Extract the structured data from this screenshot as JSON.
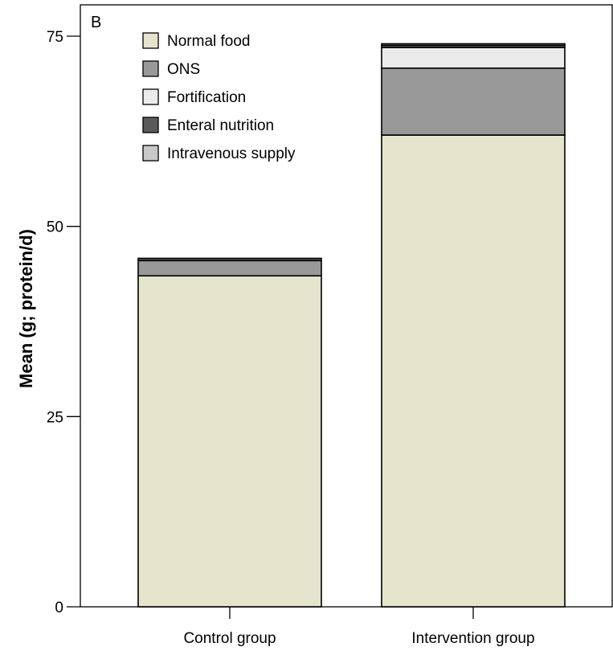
{
  "chart_data": {
    "type": "bar",
    "stacked": true,
    "panel_label": "B",
    "title": "",
    "xlabel": "",
    "ylabel": "Mean (g; protein/d)",
    "ylim": [
      0,
      75
    ],
    "yticks": [
      0,
      25,
      50,
      75
    ],
    "grid": false,
    "legend_position": "top-left",
    "categories": [
      "Control group",
      "Intervention group"
    ],
    "series": [
      {
        "name": "Normal food",
        "color": "#e5e4cd",
        "values": [
          43.5,
          62.0
        ]
      },
      {
        "name": "ONS",
        "color": "#999999",
        "values": [
          2.0,
          8.8
        ]
      },
      {
        "name": "Fortification",
        "color": "#ebebeb",
        "values": [
          0.0,
          2.7
        ]
      },
      {
        "name": "Enteral nutrition",
        "color": "#5a5a5a",
        "values": [
          0.3,
          0.3
        ]
      },
      {
        "name": "Intravenous supply",
        "color": "#c8c8c8",
        "values": [
          0.0,
          0.2
        ]
      }
    ]
  }
}
